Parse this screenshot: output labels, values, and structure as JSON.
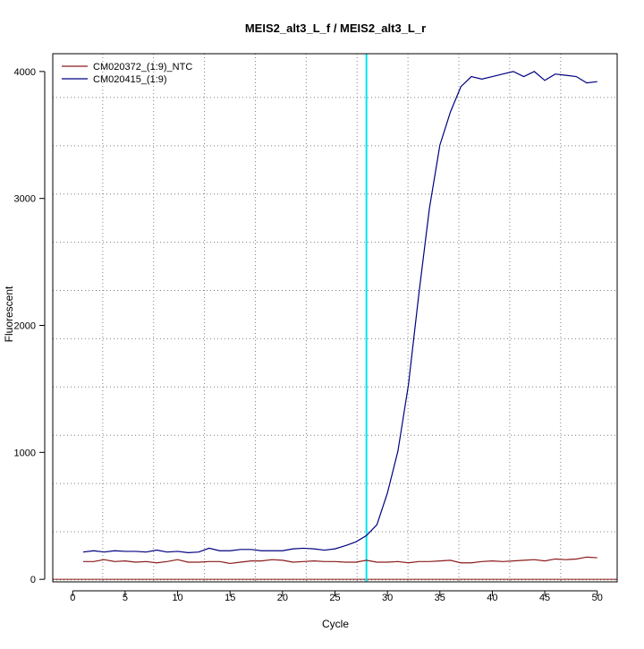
{
  "chart_data": {
    "type": "line",
    "title": "MEIS2_alt3_L_f / MEIS2_alt3_L_r",
    "xlabel": "Cycle",
    "ylabel": "Fluorescent",
    "xlim": [
      -1.9,
      51.9
    ],
    "ylim": [
      -20,
      4140
    ],
    "x_ticks": [
      0,
      5,
      10,
      15,
      20,
      25,
      30,
      35,
      40,
      45,
      50
    ],
    "y_ticks": [
      0,
      1000,
      2000,
      3000,
      4000
    ],
    "grid": "dotted",
    "grid_x": [
      2.86,
      7.71,
      12.56,
      17.41,
      22.26,
      27.11,
      31.96,
      36.81,
      41.66,
      46.51
    ],
    "grid_y": [
      -5,
      375,
      755,
      1135,
      1515,
      1895,
      2275,
      2655,
      3035,
      3415,
      3795
    ],
    "threshold_line": {
      "axis": "x",
      "value": 28,
      "color": "#00e5ee"
    },
    "baseline": {
      "axis": "y",
      "value": 0,
      "color": "#8b1a1a"
    },
    "legend_position": "top-left",
    "x": [
      1,
      2,
      3,
      4,
      5,
      6,
      7,
      8,
      9,
      10,
      11,
      12,
      13,
      14,
      15,
      16,
      17,
      18,
      19,
      20,
      21,
      22,
      23,
      24,
      25,
      26,
      27,
      28,
      29,
      30,
      31,
      32,
      33,
      34,
      35,
      36,
      37,
      38,
      39,
      40,
      41,
      42,
      43,
      44,
      45,
      46,
      47,
      48,
      49,
      50
    ],
    "series": [
      {
        "name": "CM020372_(1:9)_NTC",
        "color": "#8b1a1a",
        "values": [
          140,
          140,
          155,
          140,
          145,
          135,
          140,
          130,
          140,
          155,
          135,
          135,
          140,
          140,
          125,
          135,
          145,
          145,
          155,
          150,
          135,
          140,
          145,
          140,
          140,
          135,
          135,
          150,
          135,
          135,
          140,
          130,
          140,
          140,
          145,
          150,
          130,
          130,
          140,
          145,
          140,
          145,
          150,
          155,
          145,
          160,
          155,
          160,
          175,
          170
        ]
      },
      {
        "name": "CM020415_(1:9)",
        "color": "#000080",
        "values": [
          215,
          225,
          215,
          225,
          220,
          220,
          215,
          230,
          215,
          220,
          210,
          215,
          245,
          225,
          225,
          235,
          235,
          225,
          225,
          225,
          240,
          245,
          240,
          230,
          240,
          265,
          295,
          345,
          430,
          680,
          1010,
          1530,
          2250,
          2920,
          3420,
          3680,
          3880,
          3960,
          3940,
          3960,
          3980,
          4000,
          3960,
          4000,
          3930,
          3980,
          3970,
          3960,
          3910,
          3920
        ]
      }
    ]
  }
}
